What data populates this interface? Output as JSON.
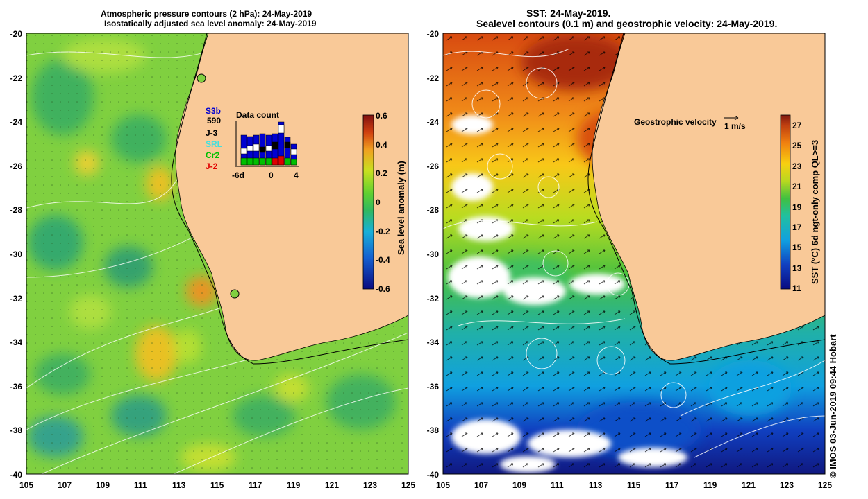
{
  "left_panel": {
    "title_line1": "Atmospheric pressure contours (2 hPa): 24-May-2019",
    "title_line2": "Isostatically adjusted sea level anomaly: 24-May-2019",
    "colorbar": {
      "label": "Sea level anomaly (m)",
      "ticks": [
        "0.6",
        "0.4",
        "0.2",
        "0",
        "-0.2",
        "-0.4",
        "-0.6"
      ],
      "range": [
        -0.6,
        0.6
      ]
    },
    "legend": {
      "missions": [
        {
          "name": "S3b",
          "color": "#0000d0"
        },
        {
          "name": "590",
          "color": "#000000"
        },
        {
          "name": "J-3",
          "color": "#000000"
        },
        {
          "name": "SRL",
          "color": "#40e0e0"
        },
        {
          "name": "Cr2",
          "color": "#00c000"
        },
        {
          "name": "J-2",
          "color": "#e00000"
        }
      ],
      "data_count_title": "Data count",
      "axis_ticks": [
        "-6d",
        "0",
        "4"
      ]
    },
    "markers": [
      {
        "lon": 114.2,
        "lat": -22.0
      },
      {
        "lon": 115.9,
        "lat": -31.8
      }
    ]
  },
  "right_panel": {
    "title_line1": "SST: 24-May-2019.",
    "title_line2": "Sealevel contours (0.1 m) and geostrophic velocity: 24-May-2019.",
    "colorbar": {
      "label": "SST (°C) 6d ngt-only comp QL>=3",
      "ticks": [
        "27",
        "25",
        "23",
        "21",
        "19",
        "17",
        "15",
        "13",
        "11"
      ],
      "range": [
        11,
        28
      ]
    },
    "velocity_label": "Geostrophic velocity",
    "velocity_scale": "1 m/s"
  },
  "axes": {
    "x_ticks": [
      "105",
      "107",
      "109",
      "111",
      "113",
      "115",
      "117",
      "119",
      "121",
      "123",
      "125"
    ],
    "y_ticks": [
      "-20",
      "-22",
      "-24",
      "-26",
      "-28",
      "-30",
      "-32",
      "-34",
      "-36",
      "-38",
      "-40"
    ],
    "lon_range": [
      105,
      125
    ],
    "lat_range": [
      -40,
      -20
    ]
  },
  "credit": "© IMOS 03-Jun-2019 09:44 Hobart",
  "colors": {
    "land": "#f9c998",
    "ocean_left": "#7fd04a",
    "coast": "#000000"
  }
}
